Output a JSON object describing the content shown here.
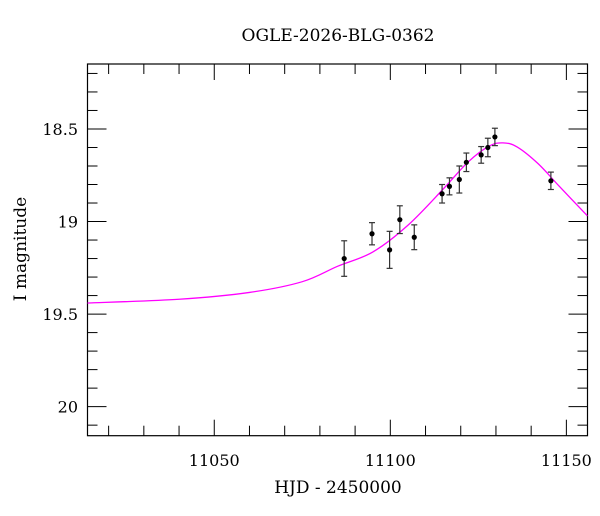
{
  "chart_data": {
    "type": "scatter",
    "title": "OGLE-2026-BLG-0362",
    "xlabel": "HJD - 2450000",
    "ylabel": "I magnitude",
    "xlim": [
      11014,
      11156
    ],
    "ylim": [
      20.157,
      18.149
    ],
    "y_inverted": true,
    "grid": false,
    "x_major_ticks": [
      11050,
      11100,
      11150
    ],
    "x_tick_labels": [
      "11050",
      "11100",
      "11150"
    ],
    "x_minor_step": 10,
    "y_major_ticks": [
      18.5,
      19,
      19.5,
      20
    ],
    "y_tick_labels": [
      "18.5",
      "19",
      "19.5",
      "20"
    ],
    "y_minor_step": 0.1,
    "series": [
      {
        "kind": "points-with-errorbars",
        "color": "#000000",
        "x": [
          11086.9,
          11094.8,
          11099.8,
          11102.7,
          11106.8,
          11114.7,
          11116.8,
          11119.6,
          11121.6,
          11125.8,
          11127.7,
          11129.7,
          11145.6
        ],
        "y": [
          19.2,
          19.066,
          19.153,
          18.99,
          19.085,
          18.85,
          18.81,
          18.773,
          18.68,
          18.64,
          18.6,
          18.543,
          18.78
        ],
        "err": [
          0.096,
          0.06,
          0.1,
          0.075,
          0.067,
          0.05,
          0.046,
          0.073,
          0.05,
          0.045,
          0.05,
          0.047,
          0.047
        ]
      },
      {
        "kind": "model-curve",
        "color": "#ff00ff",
        "x": [
          11014,
          11040,
          11060,
          11075,
          11085,
          11095,
          11105,
          11115,
          11122,
          11128,
          11132,
          11136,
          11142,
          11148,
          11156
        ],
        "y": [
          19.44,
          19.42,
          19.383,
          19.325,
          19.242,
          19.165,
          19.02,
          18.825,
          18.68,
          18.593,
          18.575,
          18.597,
          18.688,
          18.81,
          18.97
        ]
      }
    ]
  }
}
